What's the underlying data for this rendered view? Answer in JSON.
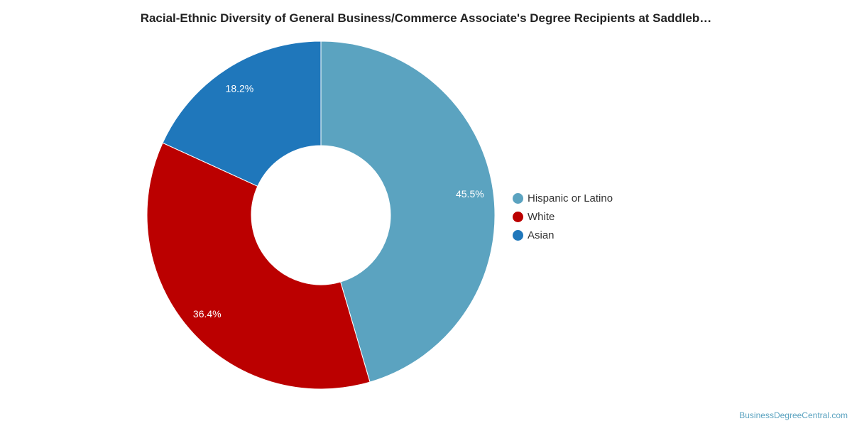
{
  "chart_data": {
    "type": "pie",
    "variant": "donut",
    "title": "Racial-Ethnic Diversity of General Business/Commerce Associate's Degree Recipients at Saddleb…",
    "legend_position": "right",
    "slices": [
      {
        "name": "Hispanic or Latino",
        "value": 45.5,
        "label": "45.5%",
        "color": "#5ba3c0"
      },
      {
        "name": "White",
        "value": 36.4,
        "label": "36.4%",
        "color": "#bb0000"
      },
      {
        "name": "Asian",
        "value": 18.2,
        "label": "18.2%",
        "color": "#1f77bb"
      }
    ]
  },
  "source": {
    "text": "BusinessDegreeCentral.com"
  }
}
